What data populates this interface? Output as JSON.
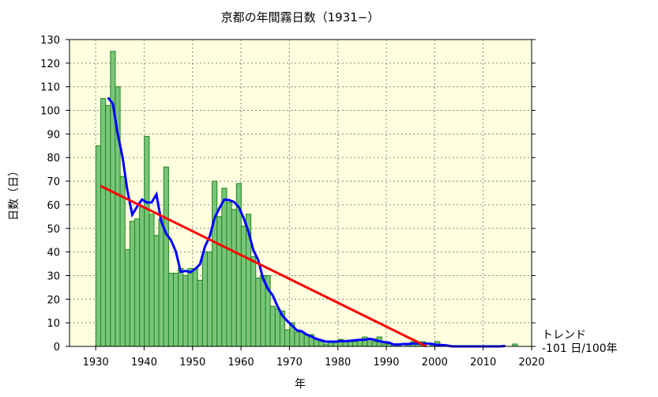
{
  "chart_data": {
    "type": "bar",
    "title": "京都の年間霧日数（1931−）",
    "xlabel": "年",
    "ylabel": "日数（日）",
    "xlim": [
      1924.6,
      2020
    ],
    "ylim": [
      0,
      130
    ],
    "xticks": [
      1930,
      1940,
      1950,
      1960,
      1970,
      1980,
      1990,
      2000,
      2010,
      2020
    ],
    "yticks": [
      0,
      10,
      20,
      30,
      40,
      50,
      60,
      70,
      80,
      90,
      100,
      110,
      120,
      130
    ],
    "grid": true,
    "years": [
      1931,
      1932,
      1933,
      1934,
      1935,
      1936,
      1937,
      1938,
      1939,
      1940,
      1941,
      1942,
      1943,
      1944,
      1945,
      1946,
      1947,
      1948,
      1949,
      1950,
      1951,
      1952,
      1953,
      1954,
      1955,
      1956,
      1957,
      1958,
      1959,
      1960,
      1961,
      1962,
      1963,
      1964,
      1965,
      1966,
      1967,
      1968,
      1969,
      1970,
      1971,
      1972,
      1973,
      1974,
      1975,
      1976,
      1977,
      1978,
      1979,
      1980,
      1981,
      1982,
      1983,
      1984,
      1985,
      1986,
      1987,
      1988,
      1989,
      1990,
      1991,
      1992,
      1993,
      1994,
      1995,
      1996,
      1997,
      1998,
      1999,
      2000,
      2001,
      2002,
      2003,
      2004,
      2005,
      2006,
      2007,
      2008,
      2009,
      2010,
      2011,
      2012,
      2013,
      2014,
      2015,
      2016,
      2017
    ],
    "values": [
      85,
      105,
      102,
      125,
      110,
      72,
      41,
      53,
      54,
      59,
      89,
      56,
      47,
      54,
      76,
      31,
      31,
      33,
      30,
      33,
      33,
      28,
      40,
      40,
      70,
      55,
      67,
      61,
      58,
      69,
      51,
      56,
      38,
      29,
      30,
      30,
      17,
      16,
      15,
      7,
      10,
      6,
      6,
      5,
      5,
      3,
      2,
      1,
      2,
      2,
      3,
      2,
      2,
      2,
      3,
      4,
      3,
      2,
      4,
      1,
      1,
      1,
      1,
      0,
      1,
      2,
      1,
      2,
      0,
      1,
      2,
      0,
      0,
      0,
      0,
      0,
      0,
      0,
      0,
      0,
      0,
      0,
      0,
      0,
      0,
      0,
      1
    ],
    "moving_average_window": 5,
    "trend": {
      "label": "トレンド",
      "value_text": "-101 日/100年",
      "start": [
        1931,
        68
      ],
      "end": [
        1998.3,
        0
      ]
    },
    "colors": {
      "bar_fill": "#7bc47b",
      "bar_edge": "#1a8a1a",
      "moving_average": "#0000ff",
      "trend": "#ff0000",
      "plot_bg": "#ffffe0"
    }
  }
}
